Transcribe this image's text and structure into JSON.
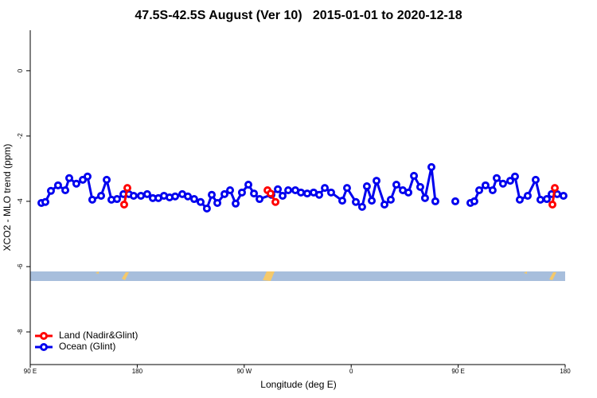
{
  "chart_data": {
    "type": "line",
    "title": "47.5S-42.5S August (Ver 10)   2015-01-01 to 2020-12-18",
    "x_label": "Longitude (deg E)",
    "y_label": "XCO2 - MLO trend (ppm)",
    "xlim": [
      90,
      540
    ],
    "xticks": [
      {
        "value": 90,
        "label": "90 E"
      },
      180,
      {
        "value": 270,
        "label": "90 W"
      },
      {
        "value": 360,
        "label": "0"
      },
      {
        "value": 450,
        "label": "90 E"
      },
      {
        "value": 540,
        "label": "180"
      }
    ],
    "ylim": [
      -9.0,
      1.24
    ],
    "yticks": [
      0,
      -2,
      -4,
      -6,
      -8
    ],
    "legend": "bottom-left",
    "series": [
      {
        "name": "Land (Nadir&Glint)",
        "color": "#ff0000",
        "x": [
          169.0,
          171.7,
          230,
          289.6,
          292.2,
          296.3,
          410,
          529.3,
          531.3
        ],
        "values": [
          -4.1,
          -3.59,
          null,
          -3.66,
          -3.76,
          -4.02,
          null,
          -4.1,
          -3.59
        ]
      },
      {
        "name": "Ocean (Glint)",
        "color": "#0000ee",
        "x": [
          99.4,
          102.7,
          107.4,
          113.4,
          119.5,
          122.8,
          128.8,
          134.2,
          138.2,
          142.2,
          149.6,
          154.3,
          158.3,
          163.0,
          168.4,
          173.0,
          177.0,
          183.1,
          188.4,
          193.1,
          197.8,
          202.5,
          207.2,
          211.9,
          217.9,
          222.6,
          227.9,
          233.3,
          238.6,
          242.7,
          247.4,
          253.4,
          258.1,
          262.8,
          268.1,
          273.5,
          278.2,
          282.9,
          292.9,
          298.3,
          302.3,
          307.0,
          313.0,
          317.7,
          323.0,
          328.4,
          333.1,
          337.8,
          343.1,
          352.5,
          356.5,
          363.9,
          369.2,
          373.2,
          377.3,
          381.3,
          388.0,
          393.3,
          398.0,
          403.4,
          408.1,
          412.8,
          418.1,
          422.1,
          427.5,
          430.8,
          440,
          447.6,
          455,
          460.3,
          463.6,
          467.7,
          473.0,
          479.0,
          482.4,
          487.7,
          493.8,
          497.8,
          501.8,
          508.5,
          515.2,
          519.2,
          524.6,
          528.6,
          533.3,
          538.6
        ],
        "values": [
          -4.05,
          -4.02,
          -3.68,
          -3.51,
          -3.66,
          -3.29,
          -3.46,
          -3.34,
          -3.24,
          -3.95,
          -3.83,
          -3.34,
          -3.95,
          -3.93,
          -3.78,
          -3.78,
          -3.83,
          -3.83,
          -3.78,
          -3.9,
          -3.9,
          -3.83,
          -3.88,
          -3.85,
          -3.78,
          -3.85,
          -3.93,
          -4.02,
          -4.22,
          -3.8,
          -4.05,
          -3.78,
          -3.66,
          -4.07,
          -3.73,
          -3.49,
          -3.76,
          -3.93,
          -3.8,
          -3.63,
          -3.83,
          -3.66,
          -3.66,
          -3.73,
          -3.76,
          -3.73,
          -3.8,
          -3.59,
          -3.73,
          -3.98,
          -3.59,
          -4.02,
          -4.17,
          -3.54,
          -3.98,
          -3.37,
          -4.1,
          -3.95,
          -3.49,
          -3.66,
          -3.73,
          -3.22,
          -3.56,
          -3.9,
          -2.95,
          -4.0,
          null,
          -4.0,
          null,
          -4.05,
          -4.0,
          -3.66,
          -3.51,
          -3.66,
          -3.29,
          -3.46,
          -3.37,
          -3.24,
          -3.95,
          -3.83,
          -3.34,
          -3.95,
          -3.93,
          -3.78,
          -3.78,
          -3.83
        ]
      }
    ]
  }
}
